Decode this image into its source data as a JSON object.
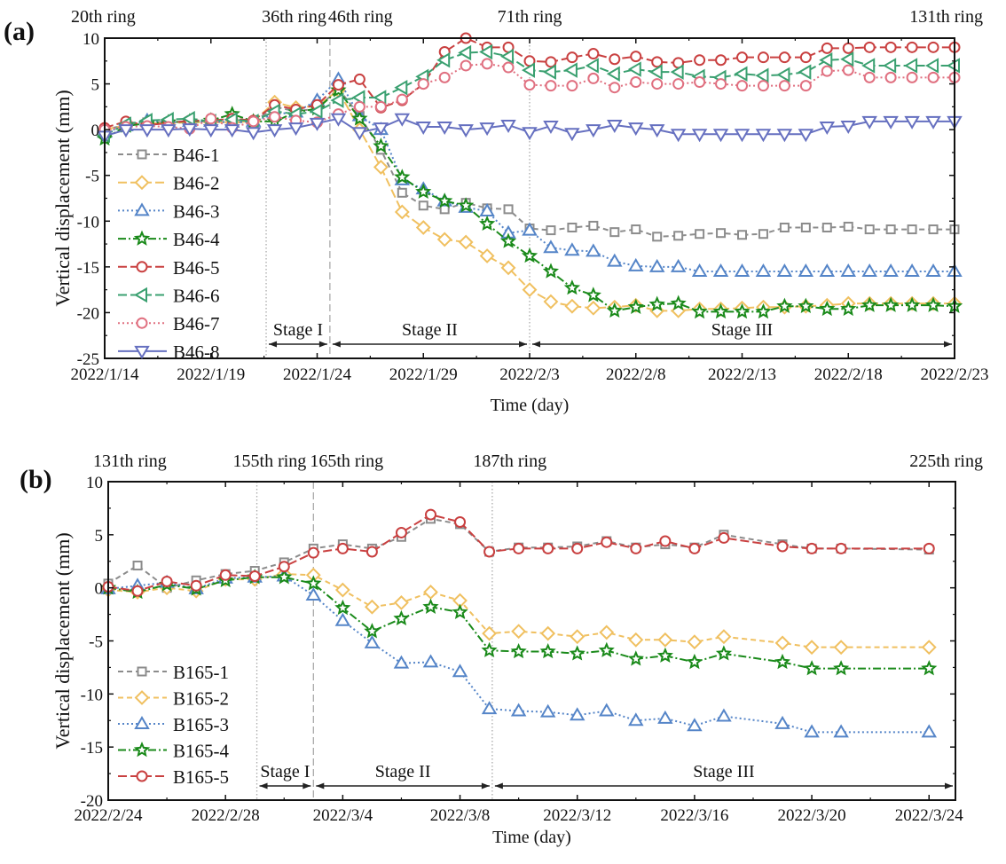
{
  "chart_data": [
    {
      "panel": "(a)",
      "type": "line",
      "title": "",
      "xlabel": "Time (day)",
      "ylabel": "Vertical displacement (mm)",
      "x_start_date": "2022/1/14",
      "xlim_days": [
        0,
        40
      ],
      "ylim": [
        -25,
        10
      ],
      "x_tick_labels": [
        "2022/1/14",
        "2022/1/19",
        "2022/1/24",
        "2022/1/29",
        "2022/2/3",
        "2022/2/8",
        "2022/2/13",
        "2022/2/18",
        "2022/2/23"
      ],
      "x_tick_days": [
        0,
        5,
        10,
        15,
        20,
        25,
        30,
        35,
        40
      ],
      "y_ticks": [
        10,
        5,
        0,
        -5,
        -10,
        -15,
        -20,
        -25
      ],
      "ring_labels": [
        {
          "text": "20th ring",
          "day": 0
        },
        {
          "text": "36th ring",
          "day": 7.7
        },
        {
          "text": "46th ring",
          "day": 10.6
        },
        {
          "text": "71th ring",
          "day": 20
        },
        {
          "text": "131th ring",
          "day": 40
        }
      ],
      "vertical_lines": [
        {
          "day": 7.6,
          "style": "dotted"
        },
        {
          "day": 10.6,
          "style": "dashed"
        },
        {
          "day": 20,
          "style": "dotted"
        }
      ],
      "stages": [
        {
          "label": "Stage I",
          "from_day": 7.6,
          "to_day": 10.6
        },
        {
          "label": "Stage II",
          "from_day": 10.6,
          "to_day": 20
        },
        {
          "label": "Stage III",
          "from_day": 20,
          "to_day": 40
        }
      ],
      "legend_position": "left",
      "x_days": [
        0,
        1,
        2,
        3,
        4,
        5,
        6,
        7,
        8,
        9,
        10,
        11,
        12,
        13,
        14,
        15,
        16,
        17,
        18,
        19,
        20,
        21,
        22,
        23,
        24,
        25,
        26,
        27,
        28,
        29,
        30,
        31,
        32,
        33,
        34,
        35,
        36,
        37,
        38,
        39,
        40
      ],
      "series": [
        {
          "name": "B46-1",
          "color": "#8c8c8c",
          "marker": "square",
          "dash": "dashed",
          "values": [
            0,
            0.5,
            0.8,
            0.8,
            0.9,
            0.9,
            0.8,
            0.8,
            2.5,
            2.0,
            2.3,
            4.5,
            1.5,
            -2.2,
            -6.9,
            -8.3,
            -8.7,
            -8.0,
            -8.6,
            -8.7,
            -10.8,
            -11.0,
            -10.7,
            -10.5,
            -11.2,
            -10.9,
            -11.7,
            -11.6,
            -11.4,
            -11.3,
            -11.5,
            -11.4,
            -10.7,
            -10.7,
            -10.7,
            -10.6,
            -10.9,
            -10.9,
            -10.9,
            -10.9,
            -10.9
          ]
        },
        {
          "name": "B46-2",
          "color": "#f0c060",
          "marker": "diamond",
          "dash": "longdash",
          "values": [
            0,
            0.5,
            0.7,
            0.7,
            0.8,
            0.8,
            0.8,
            0.9,
            3.0,
            2.4,
            2.6,
            4.3,
            0,
            -4.1,
            -9,
            -10.7,
            -12,
            -12.3,
            -13.8,
            -15.1,
            -17.5,
            -18.8,
            -19.3,
            -19.5,
            -19.4,
            -19.2,
            -19.8,
            -19.8,
            -19.6,
            -19.6,
            -19.5,
            -19.4,
            -19.4,
            -19.3,
            -19.2,
            -19.0,
            -19.0,
            -19.0,
            -19.0,
            -19.0,
            -19.0
          ]
        },
        {
          "name": "B46-3",
          "color": "#5585c8",
          "marker": "triangle-up",
          "dash": "dotted",
          "values": [
            -0.3,
            0.4,
            1.0,
            0.8,
            0.9,
            0.9,
            0.8,
            0.9,
            1.7,
            1.9,
            3.2,
            5.5,
            1.5,
            0,
            -5.5,
            -6.5,
            -7.8,
            -8.5,
            -8.9,
            -11.3,
            -11.0,
            -12.9,
            -13.2,
            -13.3,
            -14.4,
            -14.9,
            -15.0,
            -15.0,
            -15.5,
            -15.5,
            -15.5,
            -15.5,
            -15.5,
            -15.5,
            -15.5,
            -15.5,
            -15.5,
            -15.5,
            -15.5,
            -15.5,
            -15.5
          ]
        },
        {
          "name": "B46-4",
          "color": "#1a8a1a",
          "marker": "star",
          "dash": "dashdot",
          "values": [
            -1.0,
            0.4,
            0.7,
            0.8,
            0.9,
            1.0,
            1.7,
            0.9,
            0.9,
            1.9,
            2.3,
            4.3,
            1.2,
            -1.8,
            -5.2,
            -6.8,
            -7.8,
            -8.3,
            -10.3,
            -12.2,
            -13.8,
            -15.5,
            -17.3,
            -18.1,
            -19.8,
            -19.4,
            -19.1,
            -19.0,
            -19.9,
            -19.9,
            -19.9,
            -19.9,
            -19.3,
            -19.3,
            -19.6,
            -19.6,
            -19.2,
            -19.2,
            -19.2,
            -19.2,
            -19.3
          ]
        },
        {
          "name": "B46-5",
          "color": "#c94040",
          "marker": "circle",
          "dash": "longdash",
          "values": [
            0.2,
            0.9,
            0.5,
            0.7,
            1.0,
            1.0,
            1.2,
            1.0,
            2.7,
            2.2,
            2.7,
            4.9,
            5.5,
            2.4,
            3.2,
            5.0,
            8.5,
            10.0,
            9.0,
            9.0,
            7.5,
            7.4,
            7.9,
            8.3,
            7.7,
            8.0,
            7.4,
            7.3,
            7.6,
            7.6,
            7.9,
            7.9,
            7.9,
            7.9,
            8.9,
            8.9,
            9.0,
            9.0,
            9.0,
            9.0,
            9.0
          ]
        },
        {
          "name": "B46-6",
          "color": "#3aa070",
          "marker": "triangle-left",
          "dash": "longdash",
          "values": [
            -0.6,
            0.6,
            1.0,
            1.1,
            1.2,
            0.9,
            1.1,
            0.9,
            2.0,
            1.7,
            2.0,
            3.2,
            3.5,
            3.5,
            4.6,
            5.8,
            7.6,
            8.4,
            8.5,
            8.0,
            6.5,
            6.3,
            6.5,
            7.0,
            6.1,
            6.6,
            6.3,
            6.3,
            5.8,
            5.7,
            6.1,
            5.9,
            6.0,
            6.3,
            7.6,
            7.7,
            7.0,
            7.0,
            7.0,
            7.0,
            7.0
          ]
        },
        {
          "name": "B46-7",
          "color": "#e07080",
          "marker": "circle",
          "dash": "dotted",
          "values": [
            0,
            0.3,
            0.4,
            0.3,
            0.1,
            1.2,
            0.2,
            0.9,
            1.4,
            1.0,
            0.8,
            1.7,
            2.5,
            2.5,
            3.3,
            5.0,
            5.7,
            7.0,
            7.2,
            6.8,
            4.9,
            4.8,
            4.8,
            5.6,
            4.6,
            5.2,
            5.0,
            5.0,
            5.2,
            5.0,
            4.8,
            4.8,
            4.8,
            4.8,
            6.4,
            6.5,
            5.7,
            5.7,
            5.7,
            5.7,
            5.7
          ]
        },
        {
          "name": "B46-8",
          "color": "#6670c0",
          "marker": "triangle-down",
          "dash": "solid",
          "values": [
            -0.7,
            0,
            0,
            0,
            0.1,
            0,
            0,
            -0.3,
            0,
            0.2,
            0.7,
            1.2,
            -0.3,
            0.2,
            1.2,
            0.3,
            0.3,
            0,
            0.2,
            0.5,
            -0.3,
            0.4,
            -0.4,
            0,
            0.5,
            0.2,
            0,
            -0.5,
            -0.5,
            -0.5,
            -0.5,
            -0.5,
            -0.5,
            -0.5,
            0.3,
            0.4,
            0.9,
            0.9,
            0.9,
            0.9,
            0.9
          ]
        }
      ]
    },
    {
      "panel": "(b)",
      "type": "line",
      "title": "",
      "xlabel": "Time (day)",
      "ylabel": "Vertical displacement (mm)",
      "x_start_date": "2022/2/24",
      "xlim_days": [
        0,
        28.9
      ],
      "ylim": [
        -20,
        10
      ],
      "x_tick_labels": [
        "2022/2/24",
        "2022/2/28",
        "2022/3/4",
        "2022/3/8",
        "2022/3/12",
        "2022/3/16",
        "2022/3/20",
        "2022/3/24"
      ],
      "x_tick_days": [
        0,
        4,
        8,
        12,
        16,
        20,
        24,
        28
      ],
      "y_ticks": [
        10,
        5,
        0,
        -5,
        -10,
        -15,
        -20
      ],
      "ring_labels": [
        {
          "text": "131th ring",
          "day": 0.5
        },
        {
          "text": "155th ring",
          "day": 5
        },
        {
          "text": "165th ring",
          "day": 7.5
        },
        {
          "text": "187th ring",
          "day": 13.7
        },
        {
          "text": "225th ring",
          "day": 28
        }
      ],
      "vertical_lines": [
        {
          "day": 5.07,
          "style": "dotted"
        },
        {
          "day": 7.0,
          "style": "dashed"
        },
        {
          "day": 13.1,
          "style": "dotted"
        }
      ],
      "stages": [
        {
          "label": "Stage I",
          "from_day": 5.07,
          "to_day": 7.0
        },
        {
          "label": "Stage II",
          "from_day": 7.0,
          "to_day": 13.1
        },
        {
          "label": "Stage III",
          "from_day": 13.1,
          "to_day": 28.9
        }
      ],
      "legend_position": "left",
      "x_days": [
        0,
        1,
        2,
        3,
        4,
        5,
        6,
        7,
        8,
        9,
        10,
        11,
        12,
        13,
        14,
        15,
        16,
        17,
        18,
        19,
        20,
        21,
        22,
        23,
        24,
        25,
        26,
        27,
        28
      ],
      "series": [
        {
          "name": "B165-1",
          "color": "#8c8c8c",
          "marker": "square",
          "dash": "dashed",
          "values": [
            0.4,
            2.1,
            0,
            0.7,
            1.3,
            1.6,
            2.4,
            3.7,
            4.1,
            3.7,
            4.8,
            6.5,
            6.0,
            3.4,
            3.8,
            3.8,
            3.9,
            4.4,
            3.8,
            4.1,
            3.8,
            5.0,
            null,
            4.1,
            3.7,
            3.7,
            null,
            null,
            3.6
          ]
        },
        {
          "name": "B165-2",
          "color": "#f0c060",
          "marker": "diamond",
          "dash": "dashed",
          "values": [
            -0.2,
            -0.4,
            0,
            -0.3,
            0.8,
            0.8,
            1.3,
            1.2,
            -0.2,
            -1.8,
            -1.4,
            -0.4,
            -1.2,
            -4.3,
            -4.1,
            -4.3,
            -4.6,
            -4.2,
            -4.9,
            -4.9,
            -5.1,
            -4.6,
            null,
            -5.2,
            -5.6,
            -5.6,
            null,
            null,
            -5.6
          ]
        },
        {
          "name": "B165-3",
          "color": "#5585c8",
          "marker": "triangle-up",
          "dash": "dotted",
          "values": [
            -0.1,
            0.2,
            0.5,
            -0.1,
            0.9,
            1.0,
            1.1,
            -0.7,
            -3.1,
            -5.2,
            -7.1,
            -7.0,
            -7.9,
            -11.4,
            -11.6,
            -11.7,
            -12.0,
            -11.6,
            -12.5,
            -12.3,
            -13.0,
            -12.1,
            null,
            -12.8,
            -13.6,
            -13.6,
            null,
            null,
            -13.6
          ]
        },
        {
          "name": "B165-4",
          "color": "#1a8a1a",
          "marker": "star",
          "dash": "dashdot",
          "values": [
            0,
            -0.4,
            0.3,
            -0.1,
            0.7,
            1.0,
            1.0,
            0.4,
            -1.9,
            -4.1,
            -2.9,
            -1.8,
            -2.3,
            -5.9,
            -6.0,
            -6.0,
            -6.2,
            -5.9,
            -6.7,
            -6.4,
            -7.0,
            -6.2,
            null,
            -7.0,
            -7.6,
            -7.6,
            null,
            null,
            -7.6
          ]
        },
        {
          "name": "B165-5",
          "color": "#c94040",
          "marker": "circle",
          "dash": "longdash",
          "values": [
            0.1,
            -0.3,
            0.6,
            0.2,
            1.2,
            1.1,
            2.0,
            3.3,
            3.7,
            3.4,
            5.2,
            6.9,
            6.2,
            3.4,
            3.7,
            3.7,
            3.7,
            4.3,
            3.7,
            4.4,
            3.7,
            4.7,
            null,
            3.9,
            3.7,
            3.7,
            null,
            null,
            3.7
          ]
        }
      ]
    }
  ]
}
